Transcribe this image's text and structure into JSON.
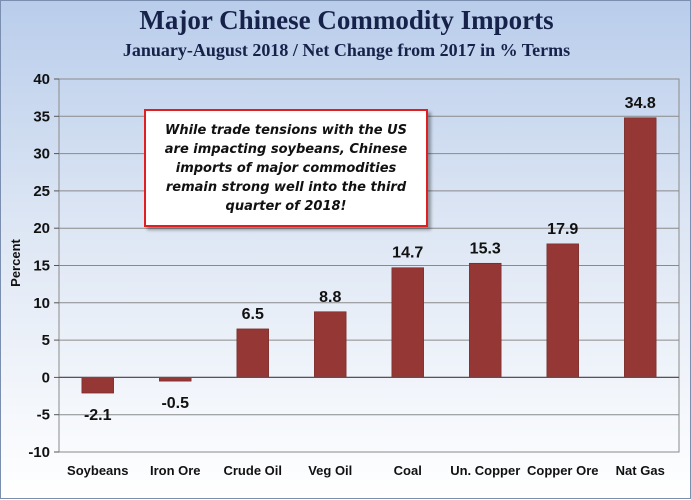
{
  "chart_data": {
    "type": "bar",
    "title": "Major Chinese Commodity Imports",
    "subtitle": "January-August 2018 / Net Change from 2017 in % Terms",
    "ylabel": "Percent",
    "xlabel": "",
    "ylim": [
      -10,
      40
    ],
    "ytick_step": 5,
    "grid": true,
    "categories": [
      "Soybeans",
      "Iron Ore",
      "Crude Oil",
      "Veg Oil",
      "Coal",
      "Un. Copper",
      "Copper Ore",
      "Nat Gas"
    ],
    "values": [
      -2.1,
      -0.5,
      6.5,
      8.8,
      14.7,
      15.3,
      17.9,
      34.8
    ],
    "data_labels": [
      "-2.1",
      "-0.5",
      "6.5",
      "8.8",
      "14.7",
      "15.3",
      "17.9",
      "34.8"
    ],
    "bar_color": "#953735",
    "annotation": "While trade tensions with the US are impacting soybeans, Chinese imports of major commodities remain strong well into the third quarter of 2018!"
  }
}
